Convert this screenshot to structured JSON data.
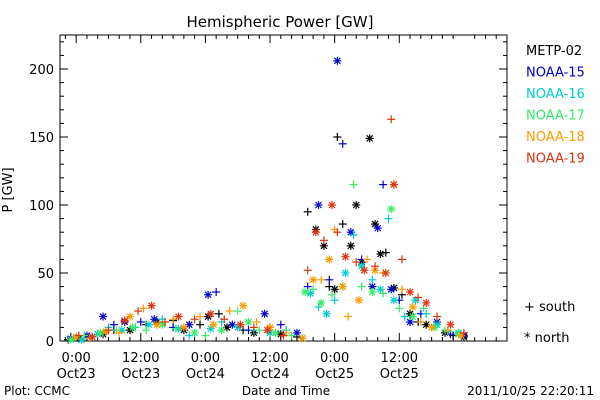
{
  "chart_data": {
    "type": "scatter",
    "title": "Hemispheric Power [GW]",
    "ylabel": "P [GW]",
    "xlabel": "Date and Time",
    "xlim": [
      -3,
      80
    ],
    "ylim": [
      0,
      225
    ],
    "yticks": [
      0,
      50,
      100,
      150,
      200
    ],
    "xticks": [
      {
        "x": 0,
        "label": "0:00",
        "sub": "Oct23"
      },
      {
        "x": 12,
        "label": "12:00",
        "sub": "Oct23"
      },
      {
        "x": 24,
        "label": "0:00",
        "sub": "Oct24"
      },
      {
        "x": 36,
        "label": "12:00",
        "sub": "Oct24"
      },
      {
        "x": 48,
        "label": "0:00",
        "sub": "Oct25"
      },
      {
        "x": 60,
        "label": "12:00",
        "sub": "Oct25"
      }
    ],
    "grid": false,
    "legend_position": "right",
    "markers": {
      "plus": "south",
      "star": "north"
    },
    "series": [
      {
        "name": "METP-02",
        "color": "#000000",
        "points": [
          [
            -1.5,
            1,
            "p"
          ],
          [
            0.5,
            2,
            "s"
          ],
          [
            3,
            3,
            "p"
          ],
          [
            5,
            5,
            "s"
          ],
          [
            7,
            8,
            "p"
          ],
          [
            10,
            8,
            "s"
          ],
          [
            13,
            12,
            "p"
          ],
          [
            15,
            14,
            "s"
          ],
          [
            18,
            15,
            "p"
          ],
          [
            20,
            8,
            "s"
          ],
          [
            23,
            12,
            "p"
          ],
          [
            24.5,
            18,
            "s"
          ],
          [
            26.5,
            20,
            "p"
          ],
          [
            28,
            10,
            "s"
          ],
          [
            31,
            8,
            "p"
          ],
          [
            33,
            6,
            "s"
          ],
          [
            36,
            10,
            "p"
          ],
          [
            38,
            5,
            "s"
          ],
          [
            41,
            3,
            "p"
          ],
          [
            43,
            95,
            "p"
          ],
          [
            44.5,
            82,
            "s"
          ],
          [
            46,
            70,
            "s"
          ],
          [
            47,
            40,
            "p"
          ],
          [
            48,
            38,
            "s"
          ],
          [
            48.5,
            150,
            "p"
          ],
          [
            49.5,
            86,
            "p"
          ],
          [
            51,
            70,
            "s"
          ],
          [
            52,
            100,
            "s"
          ],
          [
            53,
            58,
            "s"
          ],
          [
            54.5,
            149,
            "s"
          ],
          [
            55.5,
            86,
            "s"
          ],
          [
            56.5,
            64,
            "s"
          ],
          [
            57.5,
            65,
            "p"
          ],
          [
            59,
            39,
            "s"
          ],
          [
            60.5,
            34,
            "p"
          ],
          [
            62,
            20,
            "s"
          ],
          [
            63.5,
            14,
            "p"
          ],
          [
            65,
            12,
            "s"
          ],
          [
            68.5,
            6,
            "s"
          ],
          [
            70,
            4,
            "p"
          ],
          [
            72,
            3,
            "s"
          ]
        ]
      },
      {
        "name": "NOAA-15",
        "color": "#0000cc",
        "points": [
          [
            -1,
            3,
            "p"
          ],
          [
            2,
            4,
            "s"
          ],
          [
            5,
            18,
            "s"
          ],
          [
            7,
            12,
            "p"
          ],
          [
            9,
            14,
            "s"
          ],
          [
            12,
            14,
            "p"
          ],
          [
            14.5,
            16,
            "s"
          ],
          [
            18,
            10,
            "p"
          ],
          [
            21,
            12,
            "s"
          ],
          [
            24.5,
            34,
            "s"
          ],
          [
            26,
            36,
            "p"
          ],
          [
            29,
            12,
            "s"
          ],
          [
            32,
            8,
            "p"
          ],
          [
            35,
            20,
            "s"
          ],
          [
            38,
            12,
            "p"
          ],
          [
            41,
            6,
            "s"
          ],
          [
            43,
            40,
            "p"
          ],
          [
            45,
            100,
            "s"
          ],
          [
            47,
            45,
            "p"
          ],
          [
            48.5,
            206,
            "s"
          ],
          [
            49.5,
            145,
            "p"
          ],
          [
            51,
            80,
            "s"
          ],
          [
            53,
            60,
            "p"
          ],
          [
            55,
            40,
            "s"
          ],
          [
            56,
            83,
            "s"
          ],
          [
            57,
            115,
            "p"
          ],
          [
            58.5,
            38,
            "s"
          ],
          [
            60,
            30,
            "p"
          ],
          [
            62,
            14,
            "s"
          ],
          [
            64,
            20,
            "p"
          ],
          [
            67,
            14,
            "s"
          ],
          [
            69.5,
            5,
            "p"
          ],
          [
            72,
            4,
            "s"
          ]
        ]
      },
      {
        "name": "NOAA-16",
        "color": "#00cccc",
        "points": [
          [
            -0.5,
            2,
            "p"
          ],
          [
            1,
            1,
            "s"
          ],
          [
            4,
            5,
            "s"
          ],
          [
            6,
            10,
            "p"
          ],
          [
            8.5,
            8,
            "s"
          ],
          [
            11,
            10,
            "p"
          ],
          [
            13.5,
            12,
            "s"
          ],
          [
            16,
            16,
            "p"
          ],
          [
            19,
            9,
            "s"
          ],
          [
            21,
            4,
            "p"
          ],
          [
            25,
            9,
            "s"
          ],
          [
            27,
            14,
            "p"
          ],
          [
            30,
            10,
            "s"
          ],
          [
            33,
            8,
            "p"
          ],
          [
            36,
            6,
            "s"
          ],
          [
            39,
            8,
            "p"
          ],
          [
            42,
            2,
            "s"
          ],
          [
            43.5,
            35,
            "s"
          ],
          [
            45,
            25,
            "p"
          ],
          [
            46.5,
            20,
            "s"
          ],
          [
            48,
            30,
            "p"
          ],
          [
            50,
            50,
            "s"
          ],
          [
            51.5,
            78,
            "p"
          ],
          [
            53,
            55,
            "s"
          ],
          [
            55,
            45,
            "p"
          ],
          [
            56.5,
            38,
            "s"
          ],
          [
            58,
            90,
            "p"
          ],
          [
            59,
            30,
            "s"
          ],
          [
            61,
            18,
            "p"
          ],
          [
            63,
            30,
            "s"
          ],
          [
            65,
            20,
            "p"
          ],
          [
            67,
            12,
            "s"
          ],
          [
            69,
            7,
            "p"
          ],
          [
            71,
            6,
            "s"
          ]
        ]
      },
      {
        "name": "NOAA-17",
        "color": "#33ee66",
        "points": [
          [
            -1,
            1,
            "s"
          ],
          [
            1.5,
            4,
            "p"
          ],
          [
            4.5,
            6,
            "s"
          ],
          [
            7.5,
            8,
            "p"
          ],
          [
            10.5,
            10,
            "s"
          ],
          [
            13,
            8,
            "p"
          ],
          [
            16,
            12,
            "s"
          ],
          [
            18.5,
            9,
            "p"
          ],
          [
            22,
            6,
            "s"
          ],
          [
            24,
            4,
            "p"
          ],
          [
            27,
            8,
            "s"
          ],
          [
            30,
            22,
            "p"
          ],
          [
            32,
            14,
            "s"
          ],
          [
            34,
            8,
            "p"
          ],
          [
            37,
            6,
            "s"
          ],
          [
            40,
            4,
            "p"
          ],
          [
            42.5,
            36,
            "s"
          ],
          [
            44,
            38,
            "p"
          ],
          [
            45.5,
            28,
            "s"
          ],
          [
            47.5,
            34,
            "p"
          ],
          [
            49.5,
            40,
            "s"
          ],
          [
            51.5,
            115,
            "p"
          ],
          [
            53,
            40,
            "p"
          ],
          [
            55,
            36,
            "s"
          ],
          [
            57,
            35,
            "p"
          ],
          [
            58.5,
            97,
            "s"
          ],
          [
            60,
            24,
            "p"
          ],
          [
            62.5,
            18,
            "s"
          ],
          [
            64.5,
            24,
            "p"
          ],
          [
            66.5,
            10,
            "s"
          ],
          [
            68.5,
            8,
            "p"
          ],
          [
            71,
            5,
            "s"
          ]
        ]
      },
      {
        "name": "NOAA-18",
        "color": "#ff9900",
        "points": [
          [
            0,
            3,
            "s"
          ],
          [
            2.5,
            2,
            "p"
          ],
          [
            5.5,
            7,
            "s"
          ],
          [
            8,
            6,
            "p"
          ],
          [
            10,
            18,
            "s"
          ],
          [
            12.5,
            24,
            "p"
          ],
          [
            15,
            12,
            "s"
          ],
          [
            18,
            16,
            "p"
          ],
          [
            20,
            10,
            "s"
          ],
          [
            23,
            18,
            "p"
          ],
          [
            25.5,
            12,
            "s"
          ],
          [
            28.5,
            22,
            "p"
          ],
          [
            31,
            26,
            "s"
          ],
          [
            33.5,
            14,
            "p"
          ],
          [
            36,
            10,
            "s"
          ],
          [
            39,
            6,
            "p"
          ],
          [
            42,
            2,
            "s"
          ],
          [
            44,
            45,
            "s"
          ],
          [
            45.5,
            45,
            "p"
          ],
          [
            47,
            60,
            "s"
          ],
          [
            48,
            82,
            "p"
          ],
          [
            49.5,
            40,
            "s"
          ],
          [
            50.5,
            18,
            "p"
          ],
          [
            52.5,
            30,
            "s"
          ],
          [
            54,
            60,
            "p"
          ],
          [
            55.5,
            52,
            "s"
          ],
          [
            57,
            50,
            "p"
          ],
          [
            59,
            115,
            "s"
          ],
          [
            60.5,
            38,
            "p"
          ],
          [
            62.5,
            25,
            "s"
          ],
          [
            64,
            14,
            "p"
          ],
          [
            66,
            10,
            "s"
          ],
          [
            69,
            8,
            "p"
          ],
          [
            71.5,
            4,
            "s"
          ]
        ]
      },
      {
        "name": "NOAA-19",
        "color": "#dd3311",
        "points": [
          [
            0.5,
            4,
            "p"
          ],
          [
            3,
            3,
            "s"
          ],
          [
            6,
            8,
            "p"
          ],
          [
            9,
            15,
            "s"
          ],
          [
            11.5,
            22,
            "p"
          ],
          [
            14,
            26,
            "s"
          ],
          [
            16.5,
            14,
            "p"
          ],
          [
            19,
            18,
            "s"
          ],
          [
            22,
            16,
            "p"
          ],
          [
            25,
            20,
            "s"
          ],
          [
            27.5,
            16,
            "p"
          ],
          [
            30.5,
            12,
            "s"
          ],
          [
            33,
            10,
            "p"
          ],
          [
            35.5,
            8,
            "s"
          ],
          [
            38.5,
            4,
            "p"
          ],
          [
            43,
            52,
            "p"
          ],
          [
            44.5,
            80,
            "s"
          ],
          [
            46,
            74,
            "p"
          ],
          [
            47.5,
            100,
            "s"
          ],
          [
            48.5,
            80,
            "p"
          ],
          [
            50,
            62,
            "s"
          ],
          [
            52,
            58,
            "p"
          ],
          [
            53.5,
            52,
            "s"
          ],
          [
            55.5,
            55,
            "p"
          ],
          [
            57.5,
            50,
            "s"
          ],
          [
            58.5,
            163,
            "p"
          ],
          [
            59,
            115,
            "s"
          ],
          [
            60.5,
            60,
            "p"
          ],
          [
            62,
            36,
            "s"
          ],
          [
            63.5,
            32,
            "p"
          ],
          [
            65,
            28,
            "s"
          ],
          [
            67,
            18,
            "p"
          ],
          [
            69.5,
            12,
            "s"
          ],
          [
            72,
            6,
            "p"
          ]
        ]
      }
    ]
  },
  "footer": {
    "left": "Plot: CCMC",
    "center": "Date and Time",
    "right": "2011/10/25 22:20:11"
  },
  "legend_markers": {
    "south": "+ south",
    "north": "* north"
  }
}
